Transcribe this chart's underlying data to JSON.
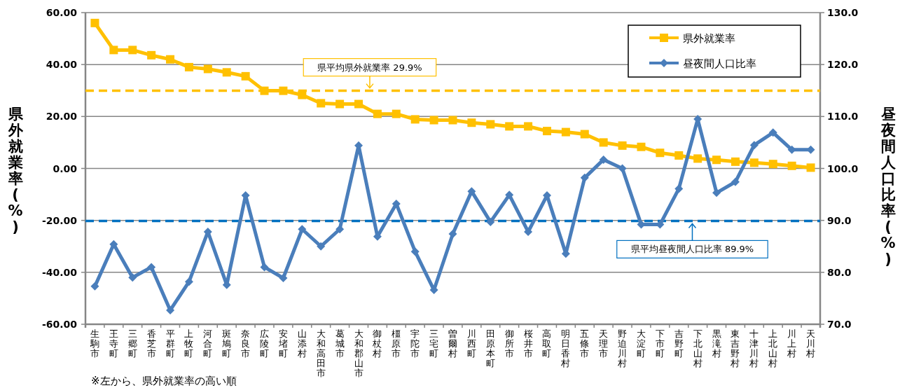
{
  "chart_data": {
    "type": "line",
    "ylabel": "県外就業率(%)",
    "y2label": "昼夜間人口比率(%)",
    "categories": [
      "生駒市",
      "王寺町",
      "三郷町",
      "香芝市",
      "平群町",
      "上牧町",
      "河合町",
      "斑鳩町",
      "奈良市",
      "広陵町",
      "安堵町",
      "山添村",
      "大和高田市",
      "葛城市",
      "大和郡山市",
      "御杖村",
      "橿原市",
      "宇陀市",
      "三宅町",
      "曽爾村",
      "川西町",
      "田原本町",
      "御所市",
      "桜井市",
      "高取町",
      "明日香村",
      "五條市",
      "天理市",
      "野迫川村",
      "大淀町",
      "下市町",
      "吉野町",
      "下北山村",
      "黒滝村",
      "東吉野村",
      "十津川村",
      "上北山村",
      "川上村",
      "天川村"
    ],
    "series": [
      {
        "name": "県外就業率",
        "color": "#ffc000",
        "marker": "square",
        "values": [
          56.0,
          45.6,
          45.6,
          43.6,
          42.0,
          39.0,
          38.3,
          37.0,
          35.5,
          29.9,
          29.9,
          28.3,
          25.1,
          24.8,
          24.8,
          21.0,
          21.0,
          18.9,
          18.6,
          18.6,
          17.6,
          17.0,
          16.2,
          16.2,
          14.4,
          14.0,
          13.2,
          10.0,
          8.8,
          8.3,
          6.0,
          5.0,
          3.8,
          3.3,
          2.6,
          2.2,
          1.7,
          1.0,
          0.3
        ]
      },
      {
        "name": "昼夜間人口比率",
        "color": "#4a7ebb",
        "marker": "diamond",
        "axis": "y2",
        "values": [
          77.3,
          85.4,
          79.0,
          81.0,
          72.7,
          78.2,
          87.8,
          77.6,
          94.8,
          81.0,
          78.9,
          88.3,
          85.0,
          88.3,
          104.4,
          86.9,
          93.2,
          84.0,
          76.6,
          87.4,
          95.6,
          89.7,
          94.9,
          87.8,
          94.8,
          83.6,
          98.2,
          101.7,
          100.0,
          89.2,
          89.2,
          96.1,
          109.5,
          95.3,
          97.4,
          104.5,
          106.9,
          103.6,
          103.6
        ]
      }
    ],
    "ylim": [
      -60,
      60
    ],
    "yticks": [
      {
        "value": -60,
        "label": "-60.00"
      },
      {
        "value": -40,
        "label": "-40.00"
      },
      {
        "value": -20,
        "label": "-20.00"
      },
      {
        "value": 0,
        "label": "0.00"
      },
      {
        "value": 20,
        "label": "20.00"
      },
      {
        "value": 40,
        "label": "40.00"
      },
      {
        "value": 60,
        "label": "60.00"
      }
    ],
    "y2lim": [
      70,
      130
    ],
    "y2ticks": [
      {
        "value": 70,
        "label": "70.0"
      },
      {
        "value": 80,
        "label": "80.0"
      },
      {
        "value": 90,
        "label": "90.0"
      },
      {
        "value": 100,
        "label": "100.0"
      },
      {
        "value": 110,
        "label": "110.0"
      },
      {
        "value": 120,
        "label": "120.0"
      },
      {
        "value": 130,
        "label": "130.0"
      }
    ],
    "ref_lines": [
      {
        "axis": "y",
        "value": 29.9,
        "label": "県平均県外就業率 29.9%",
        "color": "#ffc000",
        "line_style": "dashed"
      },
      {
        "axis": "y2",
        "value": 89.9,
        "label": "県平均昼夜間人口比率 89.9%",
        "color": "#0070c0",
        "line_style": "dashed"
      }
    ],
    "annotations": [
      "※左から、県外就業率の高い順"
    ],
    "grid": "y",
    "legend": "top right"
  }
}
